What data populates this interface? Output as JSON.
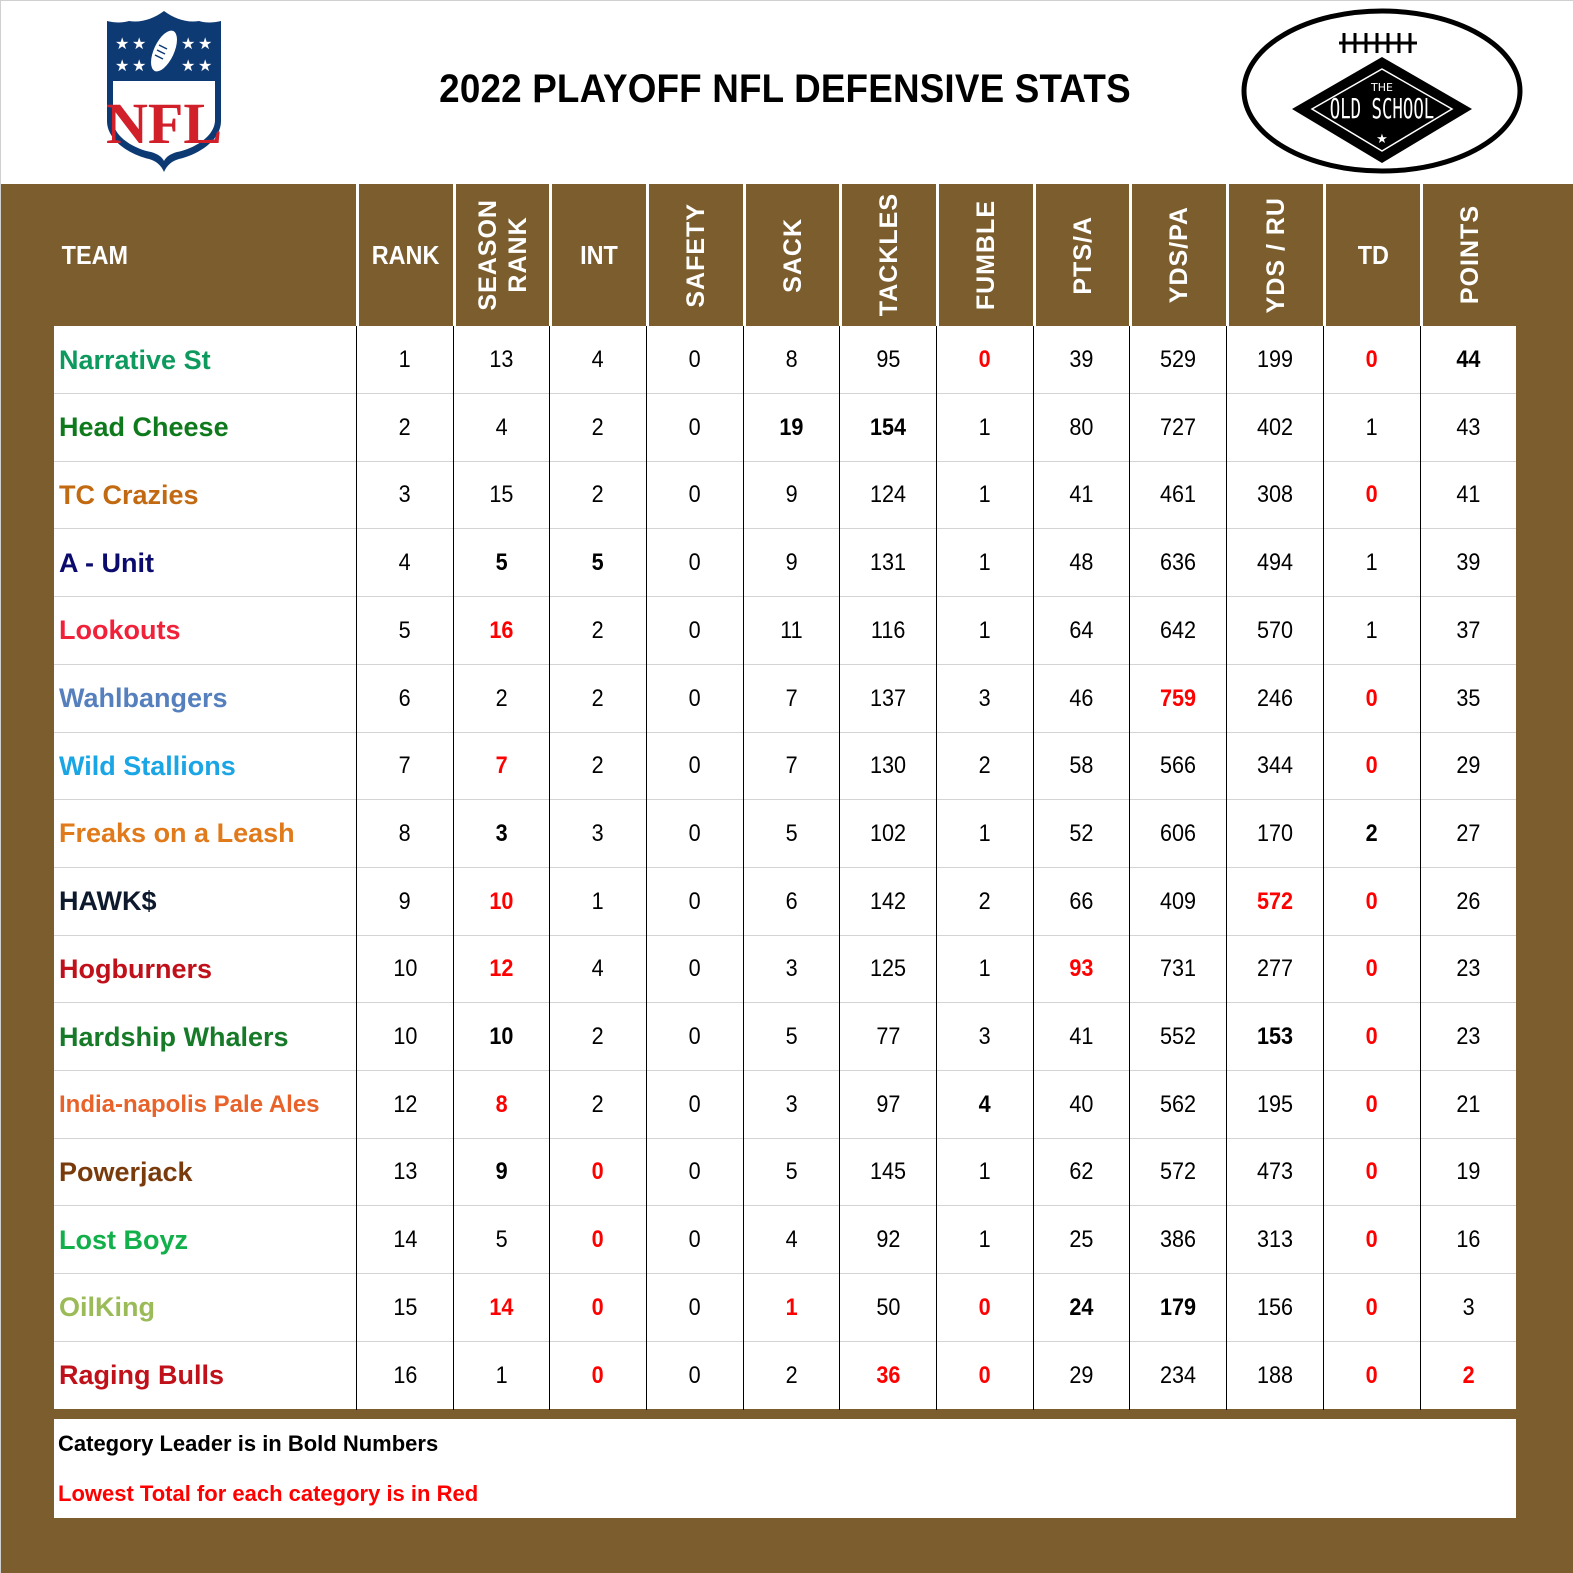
{
  "header": {
    "title": "2022 PLAYOFF NFL DEFENSIVE STATS",
    "left_logo": "NFL shield logo",
    "right_logo": "The Old School football logo",
    "right_logo_text_top": "THE",
    "right_logo_text_main": "OLD SCHOOL"
  },
  "colors": {
    "frame": "#7b5d2e",
    "header_text": "#ffffff",
    "lowest_red": "#ff0000"
  },
  "table": {
    "columns": [
      {
        "key": "team",
        "label": "TEAM",
        "vertical": false
      },
      {
        "key": "rank",
        "label": "RANK",
        "vertical": false
      },
      {
        "key": "season_rank",
        "label": "SEASON RANK",
        "label_line1": "SEASON",
        "label_line2": "RANK",
        "vertical": true
      },
      {
        "key": "int",
        "label": "INT",
        "vertical": false
      },
      {
        "key": "safety",
        "label": "SAFETY",
        "vertical": true
      },
      {
        "key": "sack",
        "label": "SACK",
        "vertical": true
      },
      {
        "key": "tackles",
        "label": "TACKLES",
        "vertical": true
      },
      {
        "key": "fumble",
        "label": "FUMBLE",
        "vertical": true
      },
      {
        "key": "pts_a",
        "label": "PTS/A",
        "vertical": true
      },
      {
        "key": "yds_pa",
        "label": "YDS/PA",
        "vertical": true
      },
      {
        "key": "yds_ru",
        "label": "YDS / RU",
        "vertical": true
      },
      {
        "key": "td",
        "label": "TD",
        "vertical": false
      },
      {
        "key": "points",
        "label": "POINTS",
        "vertical": true
      }
    ],
    "rows": [
      {
        "team": "Narrative St",
        "team_color": "#0e9a5e",
        "values": [
          "1",
          "13",
          "4",
          "0",
          "8",
          "95",
          "0",
          "39",
          "529",
          "199",
          "0",
          "44"
        ],
        "styles": [
          "",
          "",
          "",
          "",
          "",
          "",
          "red",
          "",
          "",
          "",
          "red",
          "bold"
        ]
      },
      {
        "team": "Head Cheese",
        "team_color": "#0f7a1c",
        "values": [
          "2",
          "4",
          "2",
          "0",
          "19",
          "154",
          "1",
          "80",
          "727",
          "402",
          "1",
          "43"
        ],
        "styles": [
          "",
          "",
          "",
          "",
          "bold",
          "bold",
          "",
          "",
          "",
          "",
          "",
          ""
        ]
      },
      {
        "team": "TC Crazies",
        "team_color": "#c26a12",
        "values": [
          "3",
          "15",
          "2",
          "0",
          "9",
          "124",
          "1",
          "41",
          "461",
          "308",
          "0",
          "41"
        ],
        "styles": [
          "",
          "",
          "",
          "",
          "",
          "",
          "",
          "",
          "",
          "",
          "red",
          ""
        ]
      },
      {
        "team": "A - Unit",
        "team_color": "#0b0b6e",
        "values": [
          "4",
          "5",
          "5",
          "0",
          "9",
          "131",
          "1",
          "48",
          "636",
          "494",
          "1",
          "39"
        ],
        "styles": [
          "",
          "bold",
          "bold",
          "",
          "",
          "",
          "",
          "",
          "",
          "",
          "",
          ""
        ]
      },
      {
        "team": "Lookouts",
        "team_color": "#f2213a",
        "values": [
          "5",
          "16",
          "2",
          "0",
          "11",
          "116",
          "1",
          "64",
          "642",
          "570",
          "1",
          "37"
        ],
        "styles": [
          "",
          "red",
          "",
          "",
          "",
          "",
          "",
          "",
          "",
          "",
          "",
          ""
        ]
      },
      {
        "team": "Wahlbangers",
        "team_color": "#5580bd",
        "values": [
          "6",
          "2",
          "2",
          "0",
          "7",
          "137",
          "3",
          "46",
          "759",
          "246",
          "0",
          "35"
        ],
        "styles": [
          "",
          "",
          "",
          "",
          "",
          "",
          "",
          "",
          "red",
          "",
          "red",
          ""
        ]
      },
      {
        "team": "Wild Stallions",
        "team_color": "#1aa6e4",
        "values": [
          "7",
          "7",
          "2",
          "0",
          "7",
          "130",
          "2",
          "58",
          "566",
          "344",
          "0",
          "29"
        ],
        "styles": [
          "",
          "red",
          "",
          "",
          "",
          "",
          "",
          "",
          "",
          "",
          "red",
          ""
        ]
      },
      {
        "team": "Freaks on a Leash",
        "team_color": "#e07a1a",
        "values": [
          "8",
          "3",
          "3",
          "0",
          "5",
          "102",
          "1",
          "52",
          "606",
          "170",
          "2",
          "27"
        ],
        "styles": [
          "",
          "bold",
          "",
          "",
          "",
          "",
          "",
          "",
          "",
          "",
          "bold",
          ""
        ]
      },
      {
        "team": "HAWK$",
        "team_color": "#0d1a2e",
        "values": [
          "9",
          "10",
          "1",
          "0",
          "6",
          "142",
          "2",
          "66",
          "409",
          "572",
          "0",
          "26"
        ],
        "styles": [
          "",
          "red",
          "",
          "",
          "",
          "",
          "",
          "",
          "",
          "red",
          "red",
          ""
        ]
      },
      {
        "team": "Hogburners",
        "team_color": "#c0101a",
        "values": [
          "10",
          "12",
          "4",
          "0",
          "3",
          "125",
          "1",
          "93",
          "731",
          "277",
          "0",
          "23"
        ],
        "styles": [
          "",
          "red",
          "",
          "",
          "",
          "",
          "",
          "red",
          "",
          "",
          "red",
          ""
        ]
      },
      {
        "team": "Hardship Whalers",
        "team_color": "#167a28",
        "values": [
          "10",
          "10",
          "2",
          "0",
          "5",
          "77",
          "3",
          "41",
          "552",
          "153",
          "0",
          "23"
        ],
        "styles": [
          "",
          "bold",
          "",
          "",
          "",
          "",
          "",
          "",
          "",
          "bold",
          "red",
          ""
        ]
      },
      {
        "team": "India-napolis Pale Ales",
        "team_color": "#e8622a",
        "values": [
          "12",
          "8",
          "2",
          "0",
          "3",
          "97",
          "4",
          "40",
          "562",
          "195",
          "0",
          "21"
        ],
        "styles": [
          "",
          "red",
          "",
          "",
          "",
          "",
          "bold",
          "",
          "",
          "",
          "red",
          ""
        ]
      },
      {
        "team": "Powerjack",
        "team_color": "#7a3b0c",
        "values": [
          "13",
          "9",
          "0",
          "0",
          "5",
          "145",
          "1",
          "62",
          "572",
          "473",
          "0",
          "19"
        ],
        "styles": [
          "",
          "bold",
          "red",
          "",
          "",
          "",
          "",
          "",
          "",
          "",
          "red",
          ""
        ]
      },
      {
        "team": "Lost Boyz",
        "team_color": "#12b04a",
        "values": [
          "14",
          "5",
          "0",
          "0",
          "4",
          "92",
          "1",
          "25",
          "386",
          "313",
          "0",
          "16"
        ],
        "styles": [
          "",
          "",
          "red",
          "",
          "",
          "",
          "",
          "",
          "",
          "",
          "red",
          ""
        ]
      },
      {
        "team": "OilKing",
        "team_color": "#9bbb59",
        "values": [
          "15",
          "14",
          "0",
          "0",
          "1",
          "50",
          "0",
          "24",
          "179",
          "156",
          "0",
          "3"
        ],
        "styles": [
          "",
          "red",
          "red",
          "",
          "red",
          "",
          "red",
          "bold",
          "bold",
          "",
          "red",
          ""
        ]
      },
      {
        "team": "Raging Bulls",
        "team_color": "#c0101a",
        "values": [
          "16",
          "1",
          "0",
          "0",
          "2",
          "36",
          "0",
          "29",
          "234",
          "188",
          "0",
          "2"
        ],
        "styles": [
          "",
          "",
          "red",
          "",
          "",
          "red",
          "red",
          "",
          "",
          "",
          "red",
          "red"
        ]
      }
    ]
  },
  "legend": {
    "bold_note": "Category Leader is in Bold Numbers",
    "red_note": "Lowest Total for each category is in Red"
  }
}
